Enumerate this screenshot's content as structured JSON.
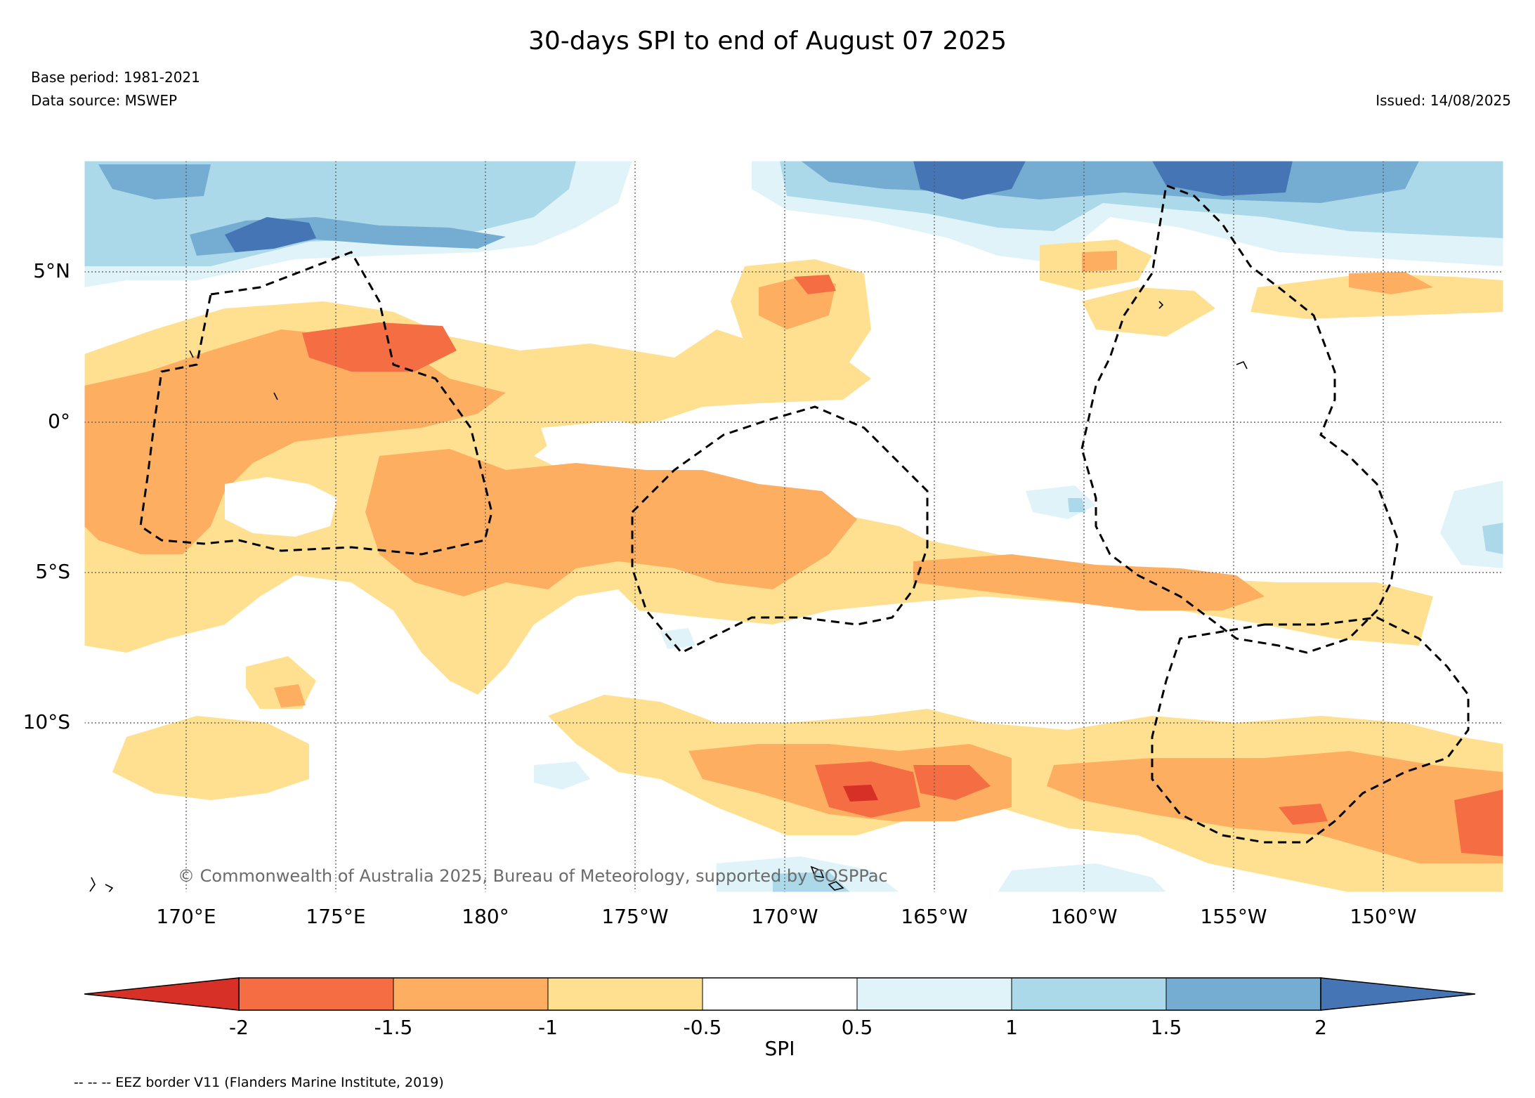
{
  "title": "30-days SPI to end of August 07 2025",
  "base_period": "Base period: 1981-2021",
  "data_source": "Data source: MSWEP",
  "issued": "Issued: 14/08/2025",
  "copyright": "© Commonwealth of Australia 2025, Bureau of Meteorology, supported by COSPPac",
  "eez_note": "-- -- -- EEZ border V11 (Flanders Marine Institute, 2019)",
  "map": {
    "lat_ticks": [
      "5°N",
      "0°",
      "5°S",
      "10°S"
    ],
    "lon_ticks": [
      "170°E",
      "175°E",
      "180°",
      "175°W",
      "170°W",
      "165°W",
      "160°W",
      "155°W",
      "150°W"
    ],
    "colors": {
      "extreme_dry": "#d73027",
      "very_dry": "#f46d43",
      "dry": "#fdae61",
      "mild_dry": "#fee090",
      "normal": "#ffffff",
      "mild_wet": "#e0f3f8",
      "wet": "#abd9e9",
      "very_wet": "#74add1",
      "extreme_wet": "#4575b4"
    }
  },
  "colorbar": {
    "title": "SPI",
    "ticks": [
      "-2",
      "-1.5",
      "-1",
      "-0.5",
      "0.5",
      "1",
      "1.5",
      "2"
    ],
    "colors": [
      "#d73027",
      "#f46d43",
      "#fdae61",
      "#fee090",
      "#ffffff",
      "#e0f3f8",
      "#abd9e9",
      "#74add1",
      "#4575b4"
    ]
  }
}
